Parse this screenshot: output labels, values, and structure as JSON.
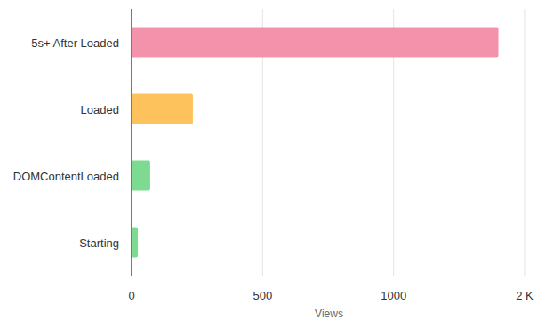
{
  "chart_data": {
    "type": "bar",
    "orientation": "horizontal",
    "x_label": "Views",
    "categories": [
      "5s+ After Loaded",
      "Loaded",
      "DOMContentLoaded",
      "Starting"
    ],
    "values": [
      1400,
      234,
      71,
      24
    ],
    "colors": [
      "#f492ab",
      "#fdc25c",
      "#7ddb91",
      "#7ddb91"
    ],
    "xlim": [
      0,
      1500
    ],
    "xticks": [
      0,
      500,
      1000,
      {
        "value": 1500,
        "label": "2 K"
      }
    ],
    "grid": true
  }
}
